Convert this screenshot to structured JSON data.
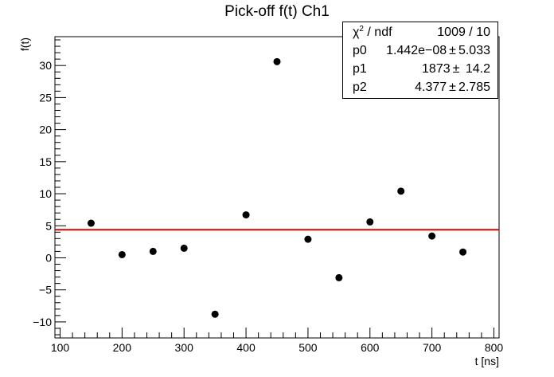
{
  "chart_data": {
    "type": "scatter",
    "title": "Pick-off f(t) Ch1",
    "xlabel": "t [ns]",
    "ylabel": "f(t)",
    "xlim": [
      100,
      800
    ],
    "ylim": [
      -12.5,
      34.5
    ],
    "x_ticks": [
      100,
      200,
      300,
      400,
      500,
      600,
      700,
      800
    ],
    "y_ticks": [
      -10,
      -5,
      0,
      5,
      10,
      15,
      20,
      25,
      30
    ],
    "x_tick_labels": [
      "100",
      "200",
      "300",
      "400",
      "500",
      "600",
      "700",
      "800"
    ],
    "y_tick_labels": [
      "−10",
      "−5",
      "0",
      "5",
      "10",
      "15",
      "20",
      "25",
      "30"
    ],
    "points": [
      {
        "x": 150,
        "y": 5.4
      },
      {
        "x": 200,
        "y": 0.5
      },
      {
        "x": 250,
        "y": 1.0
      },
      {
        "x": 300,
        "y": 1.5
      },
      {
        "x": 350,
        "y": -8.8
      },
      {
        "x": 400,
        "y": 6.7
      },
      {
        "x": 450,
        "y": 30.6
      },
      {
        "x": 500,
        "y": 2.9
      },
      {
        "x": 550,
        "y": -3.1
      },
      {
        "x": 600,
        "y": 5.6
      },
      {
        "x": 650,
        "y": 10.4
      },
      {
        "x": 700,
        "y": 3.4
      },
      {
        "x": 750,
        "y": 0.9
      }
    ],
    "fit_line": {
      "y": 4.377,
      "color": "#e00000"
    },
    "point_color": "#000000",
    "grid": false
  },
  "stats": {
    "chi2_name": "χ",
    "chi2_sup": "2",
    "chi2_rest": " / ndf",
    "chi2_value": "1009 / 10",
    "rows": [
      {
        "name": "p0",
        "value": "1.442e−08",
        "pm": "±",
        "error": "5.033"
      },
      {
        "name": "p1",
        "value": "1873",
        "pm": "±",
        "error": " 14.2"
      },
      {
        "name": "p2",
        "value": "4.377",
        "pm": "±",
        "error": "2.785"
      }
    ]
  }
}
